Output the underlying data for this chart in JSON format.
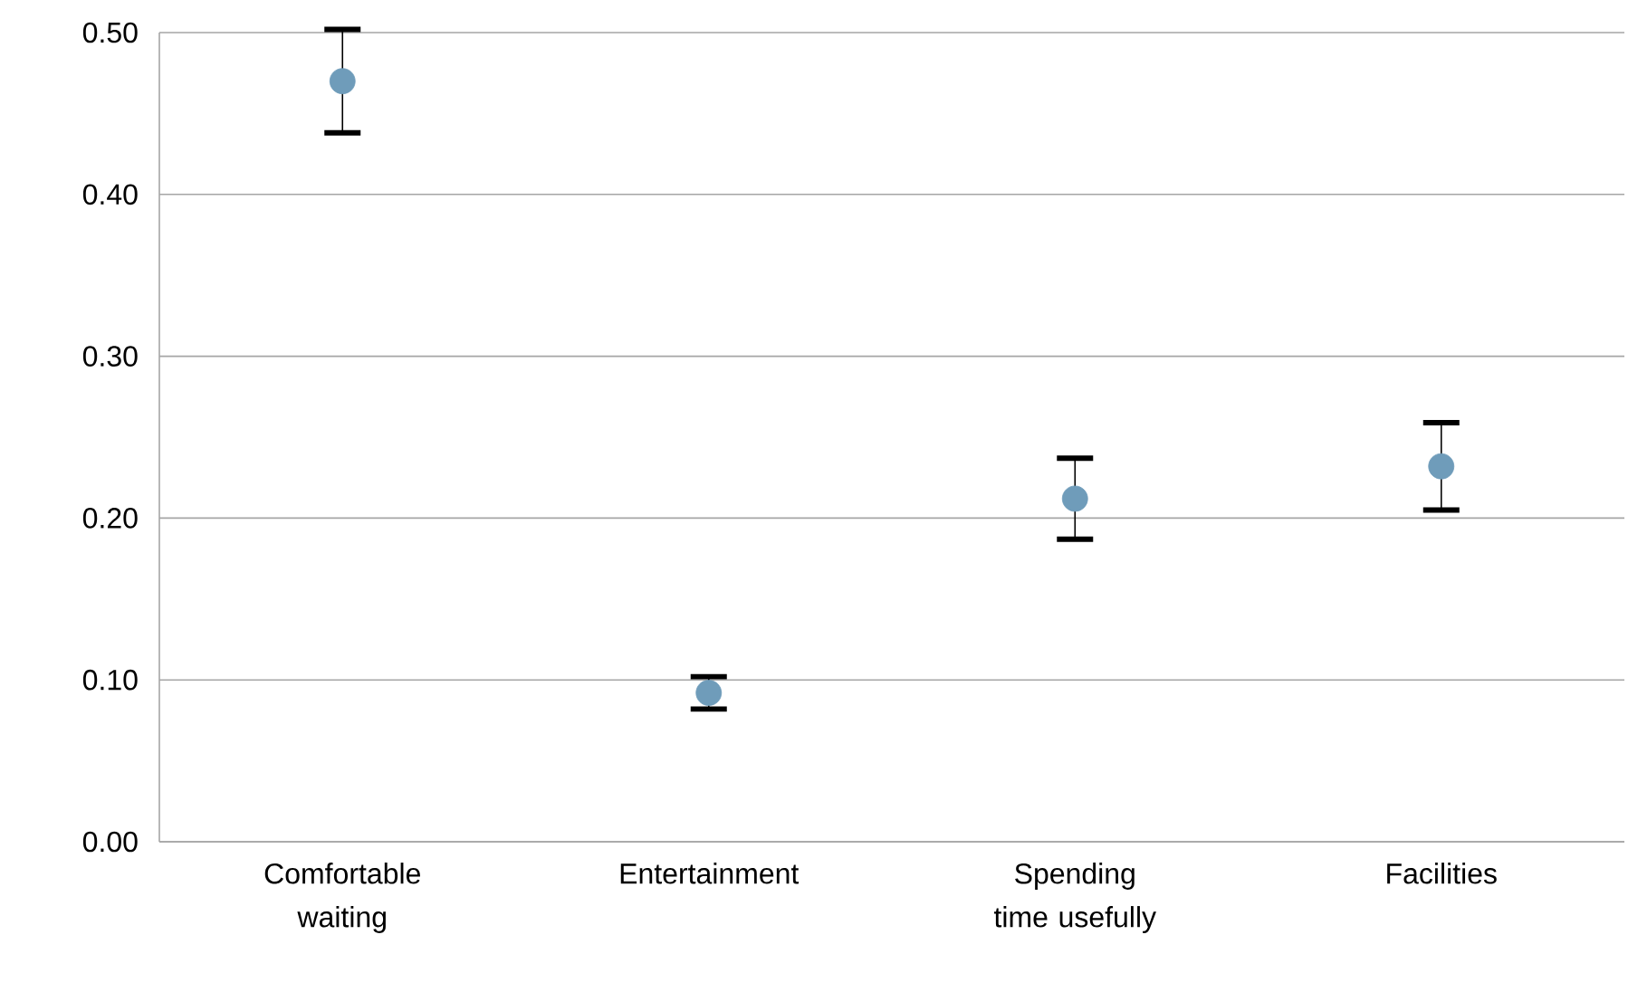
{
  "chart_data": {
    "type": "scatter",
    "categories": [
      "Comfortable waiting",
      "Entertainment",
      "Spending time usefully",
      "Facilities"
    ],
    "values": [
      0.47,
      0.092,
      0.212,
      0.232
    ],
    "errors": [
      0.032,
      0.01,
      0.025,
      0.027
    ],
    "color": "#6f9cba",
    "marker": "circle",
    "ylim": [
      0,
      0.5
    ],
    "yticks": [
      {
        "value": 0,
        "label": "0.00"
      },
      {
        "value": 0.1,
        "label": "0.10"
      },
      {
        "value": 0.2,
        "label": "0.20"
      },
      {
        "value": 0.3,
        "label": "0.30"
      },
      {
        "value": 0.4,
        "label": "0.40"
      },
      {
        "value": 0.5,
        "label": "0.50"
      }
    ],
    "grid": "y"
  }
}
